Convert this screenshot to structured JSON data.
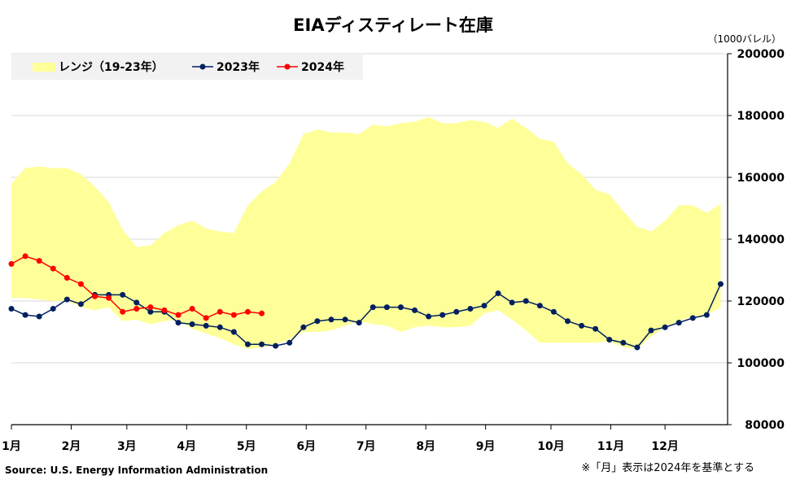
{
  "chart_data": {
    "type": "line",
    "title": "EIAディスティレート在庫",
    "unit_label": "（1000バレル）",
    "ylim": [
      80000,
      200000
    ],
    "y_ticks": [
      "80000",
      "100000",
      "120000",
      "140000",
      "160000",
      "180000",
      "200000"
    ],
    "y_tick_values": [
      80000,
      100000,
      120000,
      140000,
      160000,
      180000,
      200000
    ],
    "x_domain_weeks": [
      0,
      51.5
    ],
    "month_labels": [
      "1月",
      "2月",
      "3月",
      "4月",
      "5月",
      "6月",
      "7月",
      "8月",
      "9月",
      "10月",
      "11月",
      "12月"
    ],
    "month_label_weeks": [
      0,
      4.3,
      8.3,
      12.6,
      16.9,
      21.2,
      25.5,
      29.8,
      34.1,
      38.8,
      43.1,
      47.0
    ],
    "grid": true,
    "legend_position": "top-left",
    "legend": {
      "range_label": "レンジ（19-23年）",
      "series_2023_label": "2023年",
      "series_2024_label": "2024年"
    },
    "colors": {
      "range_fill": "#ffff99",
      "series_2023": "#002060",
      "series_2024": "#ff0000",
      "grid": "#d9d9d9",
      "legend_bg": "#f2f2f2"
    },
    "range": {
      "upper": [
        158000,
        163000,
        163500,
        163000,
        163000,
        161000,
        157000,
        152000,
        143000,
        137500,
        138000,
        142000,
        144500,
        146000,
        143500,
        142500,
        142000,
        151000,
        155500,
        158500,
        164500,
        174000,
        175500,
        174500,
        174500,
        174000,
        177000,
        176500,
        177500,
        178000,
        179500,
        177500,
        177500,
        178500,
        178000,
        176000,
        179000,
        176000,
        172500,
        171500,
        164500,
        161000,
        156000,
        154500,
        149000,
        144000,
        142500,
        146000,
        151000,
        151000,
        148500,
        151500
      ],
      "lower": [
        121000,
        121000,
        120500,
        120000,
        120000,
        118000,
        117000,
        118000,
        113500,
        114000,
        112500,
        113500,
        114000,
        111000,
        109500,
        108000,
        106000,
        104500,
        105000,
        106000,
        107500,
        110000,
        110000,
        110500,
        112000,
        113500,
        112500,
        112000,
        110000,
        111500,
        112000,
        111500,
        111500,
        112000,
        116000,
        117000,
        114000,
        110500,
        106500,
        106500,
        106500,
        106500,
        106500,
        107000,
        105000,
        104500,
        108500,
        111500,
        113500,
        115000,
        115500,
        118000
      ]
    },
    "series": [
      {
        "name": "2023年",
        "x": [
          0,
          1,
          2,
          3,
          4,
          5,
          6,
          7,
          8,
          9,
          10,
          11,
          12,
          13,
          14,
          15,
          16,
          17,
          18,
          19,
          20,
          21,
          22,
          23,
          24,
          25,
          26,
          27,
          28,
          29,
          30,
          31,
          32,
          33,
          34,
          35,
          36,
          37,
          38,
          39,
          40,
          41,
          42,
          43,
          44,
          45,
          46,
          47,
          48,
          49,
          50,
          51
        ],
        "values": [
          117500,
          115500,
          115000,
          117500,
          120500,
          119000,
          122000,
          122000,
          122000,
          119500,
          116500,
          116500,
          113000,
          112500,
          112000,
          111500,
          110000,
          106000,
          106000,
          105500,
          106500,
          111500,
          113500,
          114000,
          114000,
          113000,
          118000,
          118000,
          118000,
          117000,
          115000,
          115500,
          116500,
          117500,
          118500,
          122500,
          119500,
          120000,
          118500,
          116500,
          113500,
          112000,
          111000,
          107500,
          106500,
          105000,
          110500,
          111500,
          113000,
          114500,
          115500,
          125500
        ]
      },
      {
        "name": "2024年",
        "x": [
          0,
          1,
          2,
          3,
          4,
          5,
          6,
          7,
          8,
          9,
          10,
          11,
          12,
          13,
          14,
          15,
          16,
          17,
          18
        ],
        "values": [
          132000,
          134500,
          133000,
          130500,
          127500,
          125500,
          121500,
          121000,
          116500,
          117500,
          118000,
          117000,
          115500,
          117500,
          114500,
          116500,
          115500,
          116500,
          116000
        ]
      }
    ],
    "source": "Source: U.S. Energy Information Administration",
    "note": "※「月」表示は2024年を基準とする"
  }
}
